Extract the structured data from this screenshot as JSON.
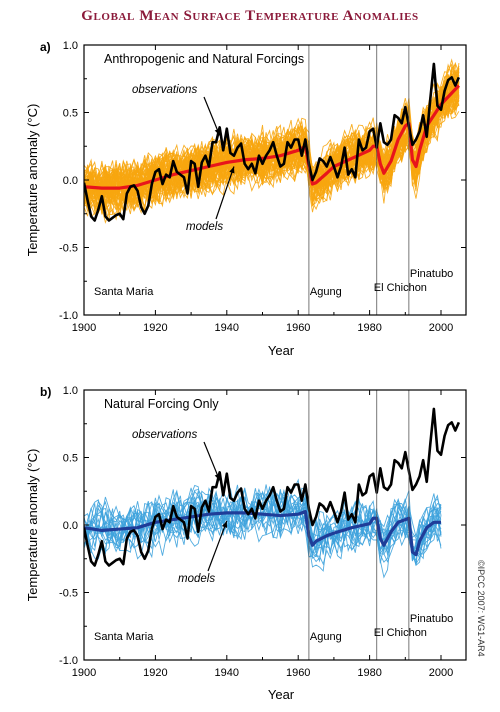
{
  "title": "Global Mean Surface Temperature Anomalies",
  "credit": "©IPCC 2007: WG1-AR4",
  "colors": {
    "observations": "#000000",
    "model_mean_a": "#e8151b",
    "model_runs_a": "#f7a60f",
    "model_mean_b": "#1f3d99",
    "model_runs_b": "#3fa3dd",
    "volcano_line": "#555555",
    "title": "#8b1a3a"
  },
  "chart_data": [
    {
      "type": "line",
      "panel": "a)",
      "subtitle": "Anthropogenic and Natural Forcings",
      "xlabel": "Year",
      "ylabel": "Temperature anomaly (°C)",
      "xlim": [
        1900,
        2007
      ],
      "ylim": [
        -1.0,
        1.0
      ],
      "xticks": [
        1900,
        1920,
        1940,
        1960,
        1980,
        2000
      ],
      "yticks": [
        "-1.0",
        "-0.5",
        "0.0",
        "0.5",
        "1.0"
      ],
      "grid": false,
      "annotations": [
        {
          "text": "observations",
          "target_series": "observations",
          "target": [
            1938,
            0.33
          ]
        },
        {
          "text": "models",
          "target_series": "model mean",
          "target": [
            1942,
            0.1
          ]
        }
      ],
      "volcanoes": [
        {
          "name": "Santa Maria",
          "year": 1902,
          "line": false
        },
        {
          "name": "Agung",
          "year": 1963,
          "line": true
        },
        {
          "name": "El Chichon",
          "year": 1982,
          "line": true
        },
        {
          "name": "Pinatubo",
          "year": 1991,
          "line": true
        }
      ],
      "series": [
        {
          "role": "observations",
          "x": [
            1900,
            1901,
            1902,
            1903,
            1904,
            1905,
            1906,
            1907,
            1908,
            1909,
            1910,
            1911,
            1912,
            1913,
            1914,
            1915,
            1916,
            1917,
            1918,
            1919,
            1920,
            1921,
            1922,
            1923,
            1924,
            1925,
            1926,
            1927,
            1928,
            1929,
            1930,
            1931,
            1932,
            1933,
            1934,
            1935,
            1936,
            1937,
            1938,
            1939,
            1940,
            1941,
            1942,
            1943,
            1944,
            1945,
            1946,
            1947,
            1948,
            1949,
            1950,
            1951,
            1952,
            1953,
            1954,
            1955,
            1956,
            1957,
            1958,
            1959,
            1960,
            1961,
            1962,
            1963,
            1964,
            1965,
            1966,
            1967,
            1968,
            1969,
            1970,
            1971,
            1972,
            1973,
            1974,
            1975,
            1976,
            1977,
            1978,
            1979,
            1980,
            1981,
            1982,
            1983,
            1984,
            1985,
            1986,
            1987,
            1988,
            1989,
            1990,
            1991,
            1992,
            1993,
            1994,
            1995,
            1996,
            1997,
            1998,
            1999,
            2000,
            2001,
            2002,
            2003,
            2004,
            2005
          ],
          "y": [
            -0.02,
            -0.15,
            -0.27,
            -0.3,
            -0.22,
            -0.12,
            -0.27,
            -0.3,
            -0.28,
            -0.26,
            -0.25,
            -0.29,
            -0.1,
            -0.05,
            -0.04,
            -0.08,
            -0.2,
            -0.25,
            -0.19,
            -0.03,
            0.06,
            0.08,
            -0.03,
            0.04,
            0.02,
            0.14,
            0.06,
            0.04,
            0.02,
            -0.1,
            0.14,
            0.12,
            -0.05,
            0.13,
            0.18,
            0.1,
            0.28,
            0.28,
            0.39,
            0.22,
            0.38,
            0.2,
            0.18,
            0.24,
            0.27,
            0.12,
            0.08,
            0.12,
            0.05,
            0.18,
            0.12,
            0.18,
            0.22,
            0.28,
            0.18,
            0.1,
            0.12,
            0.28,
            0.24,
            0.3,
            0.3,
            0.18,
            0.3,
            0.12,
            0.0,
            0.06,
            0.16,
            0.14,
            0.1,
            0.17,
            0.1,
            0.02,
            0.1,
            0.24,
            0.04,
            0.08,
            0.02,
            0.3,
            0.22,
            0.24,
            0.36,
            0.38,
            0.24,
            0.42,
            0.28,
            0.26,
            0.3,
            0.48,
            0.46,
            0.42,
            0.54,
            0.4,
            0.26,
            0.3,
            0.36,
            0.48,
            0.32,
            0.6,
            0.86,
            0.55,
            0.52,
            0.66,
            0.74,
            0.76,
            0.7,
            0.76
          ]
        },
        {
          "role": "model mean",
          "x": [
            1900,
            1905,
            1910,
            1915,
            1920,
            1925,
            1930,
            1935,
            1940,
            1945,
            1950,
            1955,
            1960,
            1962,
            1963,
            1964,
            1965,
            1968,
            1970,
            1975,
            1980,
            1981,
            1982,
            1983,
            1984,
            1986,
            1988,
            1990,
            1991,
            1992,
            1993,
            1994,
            1996,
            1998,
            2000,
            2005
          ],
          "y": [
            -0.05,
            -0.06,
            -0.06,
            -0.04,
            0.0,
            0.04,
            0.07,
            0.1,
            0.13,
            0.15,
            0.16,
            0.18,
            0.22,
            0.25,
            0.1,
            -0.03,
            -0.02,
            0.05,
            0.1,
            0.16,
            0.22,
            0.25,
            0.25,
            0.12,
            0.05,
            0.14,
            0.3,
            0.4,
            0.42,
            0.15,
            0.1,
            0.22,
            0.4,
            0.48,
            0.56,
            0.7
          ]
        },
        {
          "role": "model runs",
          "count": 58,
          "range": [
            -0.3,
            0.3
          ]
        }
      ]
    },
    {
      "type": "line",
      "panel": "b)",
      "subtitle": "Natural Forcing Only",
      "xlabel": "Year",
      "ylabel": "Temperature anomaly (°C)",
      "xlim": [
        1900,
        2007
      ],
      "ylim": [
        -1.0,
        1.0
      ],
      "xticks": [
        1900,
        1920,
        1940,
        1960,
        1980,
        2000
      ],
      "yticks": [
        "-1.0",
        "-0.5",
        "0.0",
        "0.5",
        "1.0"
      ],
      "grid": false,
      "annotations": [
        {
          "text": "observations",
          "target_series": "observations",
          "target": [
            1938,
            0.33
          ]
        },
        {
          "text": "models",
          "target_series": "model mean",
          "target": [
            1940,
            0.03
          ]
        }
      ],
      "volcanoes": [
        {
          "name": "Santa Maria",
          "year": 1902,
          "line": false
        },
        {
          "name": "Agung",
          "year": 1963,
          "line": true
        },
        {
          "name": "El Chichon",
          "year": 1982,
          "line": true
        },
        {
          "name": "Pinatubo",
          "year": 1991,
          "line": true
        }
      ],
      "series": [
        {
          "role": "observations",
          "x": [
            1900,
            1901,
            1902,
            1903,
            1904,
            1905,
            1906,
            1907,
            1908,
            1909,
            1910,
            1911,
            1912,
            1913,
            1914,
            1915,
            1916,
            1917,
            1918,
            1919,
            1920,
            1921,
            1922,
            1923,
            1924,
            1925,
            1926,
            1927,
            1928,
            1929,
            1930,
            1931,
            1932,
            1933,
            1934,
            1935,
            1936,
            1937,
            1938,
            1939,
            1940,
            1941,
            1942,
            1943,
            1944,
            1945,
            1946,
            1947,
            1948,
            1949,
            1950,
            1951,
            1952,
            1953,
            1954,
            1955,
            1956,
            1957,
            1958,
            1959,
            1960,
            1961,
            1962,
            1963,
            1964,
            1965,
            1966,
            1967,
            1968,
            1969,
            1970,
            1971,
            1972,
            1973,
            1974,
            1975,
            1976,
            1977,
            1978,
            1979,
            1980,
            1981,
            1982,
            1983,
            1984,
            1985,
            1986,
            1987,
            1988,
            1989,
            1990,
            1991,
            1992,
            1993,
            1994,
            1995,
            1996,
            1997,
            1998,
            1999,
            2000,
            2001,
            2002,
            2003,
            2004,
            2005
          ],
          "y": [
            -0.02,
            -0.15,
            -0.27,
            -0.3,
            -0.22,
            -0.12,
            -0.27,
            -0.3,
            -0.28,
            -0.26,
            -0.25,
            -0.29,
            -0.1,
            -0.05,
            -0.04,
            -0.08,
            -0.2,
            -0.25,
            -0.19,
            -0.03,
            0.06,
            0.08,
            -0.03,
            0.04,
            0.02,
            0.14,
            0.06,
            0.04,
            0.02,
            -0.1,
            0.14,
            0.12,
            -0.05,
            0.13,
            0.18,
            0.1,
            0.28,
            0.28,
            0.39,
            0.22,
            0.38,
            0.2,
            0.18,
            0.24,
            0.27,
            0.12,
            0.08,
            0.12,
            0.05,
            0.18,
            0.12,
            0.18,
            0.22,
            0.28,
            0.18,
            0.1,
            0.12,
            0.28,
            0.24,
            0.3,
            0.3,
            0.18,
            0.3,
            0.12,
            0.0,
            0.06,
            0.16,
            0.14,
            0.1,
            0.17,
            0.1,
            0.02,
            0.1,
            0.24,
            0.04,
            0.08,
            0.02,
            0.3,
            0.22,
            0.24,
            0.36,
            0.38,
            0.24,
            0.42,
            0.28,
            0.26,
            0.3,
            0.48,
            0.46,
            0.42,
            0.54,
            0.4,
            0.26,
            0.3,
            0.36,
            0.48,
            0.32,
            0.6,
            0.86,
            0.55,
            0.52,
            0.66,
            0.74,
            0.76,
            0.7,
            0.76
          ]
        },
        {
          "role": "model mean",
          "x": [
            1900,
            1905,
            1910,
            1915,
            1920,
            1925,
            1930,
            1935,
            1940,
            1945,
            1950,
            1955,
            1960,
            1962,
            1963,
            1964,
            1965,
            1968,
            1970,
            1975,
            1980,
            1981,
            1982,
            1983,
            1984,
            1986,
            1988,
            1990,
            1991,
            1992,
            1993,
            1994,
            1996,
            1998,
            2000
          ],
          "y": [
            -0.02,
            -0.04,
            -0.03,
            -0.02,
            0.02,
            0.04,
            0.06,
            0.08,
            0.09,
            0.09,
            0.08,
            0.07,
            0.08,
            0.1,
            -0.08,
            -0.15,
            -0.12,
            -0.08,
            -0.06,
            -0.02,
            0.01,
            0.05,
            0.05,
            -0.1,
            -0.15,
            -0.05,
            0.02,
            0.04,
            0.05,
            -0.2,
            -0.22,
            -0.12,
            -0.02,
            0.02,
            0.02
          ]
        },
        {
          "role": "model runs",
          "count": 19,
          "range": [
            -0.3,
            0.3
          ]
        }
      ]
    }
  ]
}
